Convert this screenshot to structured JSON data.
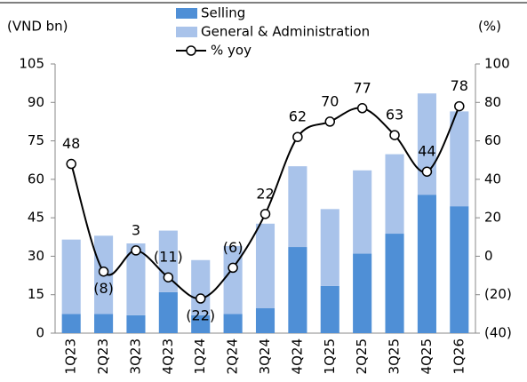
{
  "chart_data": {
    "type": "bar-line",
    "y_label": "(VND bn)",
    "y2_label": "(%)",
    "categories": [
      "1Q23",
      "2Q23",
      "3Q23",
      "4Q23",
      "1Q24",
      "2Q24",
      "3Q24",
      "4Q24",
      "1Q25",
      "2Q25",
      "3Q25",
      "4Q25",
      "1Q26"
    ],
    "series": [
      {
        "name": "Selling",
        "type": "bar",
        "color": "#4f8fd6",
        "values": [
          7.5,
          7.5,
          7,
          16,
          7,
          7.5,
          9.7,
          33.6,
          18.4,
          31,
          38.8,
          54,
          49.5
        ]
      },
      {
        "name": "General & Administration",
        "type": "bar",
        "color": "#a9c3ea",
        "values": [
          29,
          30.5,
          28,
          24,
          21.5,
          26.5,
          33,
          31.5,
          30,
          32.5,
          31,
          39.5,
          37
        ]
      },
      {
        "name": "% yoy",
        "type": "line",
        "axis": "y2",
        "color": "#000000",
        "values": [
          48,
          -8,
          3,
          -11,
          -22,
          -6,
          22,
          62,
          70,
          77,
          63,
          44,
          78
        ],
        "value_labels": [
          "48",
          "(8)",
          "3",
          "(11)",
          "(22)",
          "(6)",
          "22",
          "62",
          "70",
          "77",
          "63",
          "44",
          "78"
        ]
      }
    ],
    "ylim": [
      0,
      105
    ],
    "yticks": [
      0,
      15,
      30,
      45,
      60,
      75,
      90,
      105
    ],
    "y2lim": [
      -40,
      100
    ],
    "y2ticks": [
      {
        "value": -40,
        "label": "(40)"
      },
      {
        "value": -20,
        "label": "(20)"
      },
      0,
      20,
      40,
      60,
      80,
      100
    ],
    "negative_color": "#ff0000",
    "stacked": true,
    "grid": false,
    "legend": "top"
  }
}
